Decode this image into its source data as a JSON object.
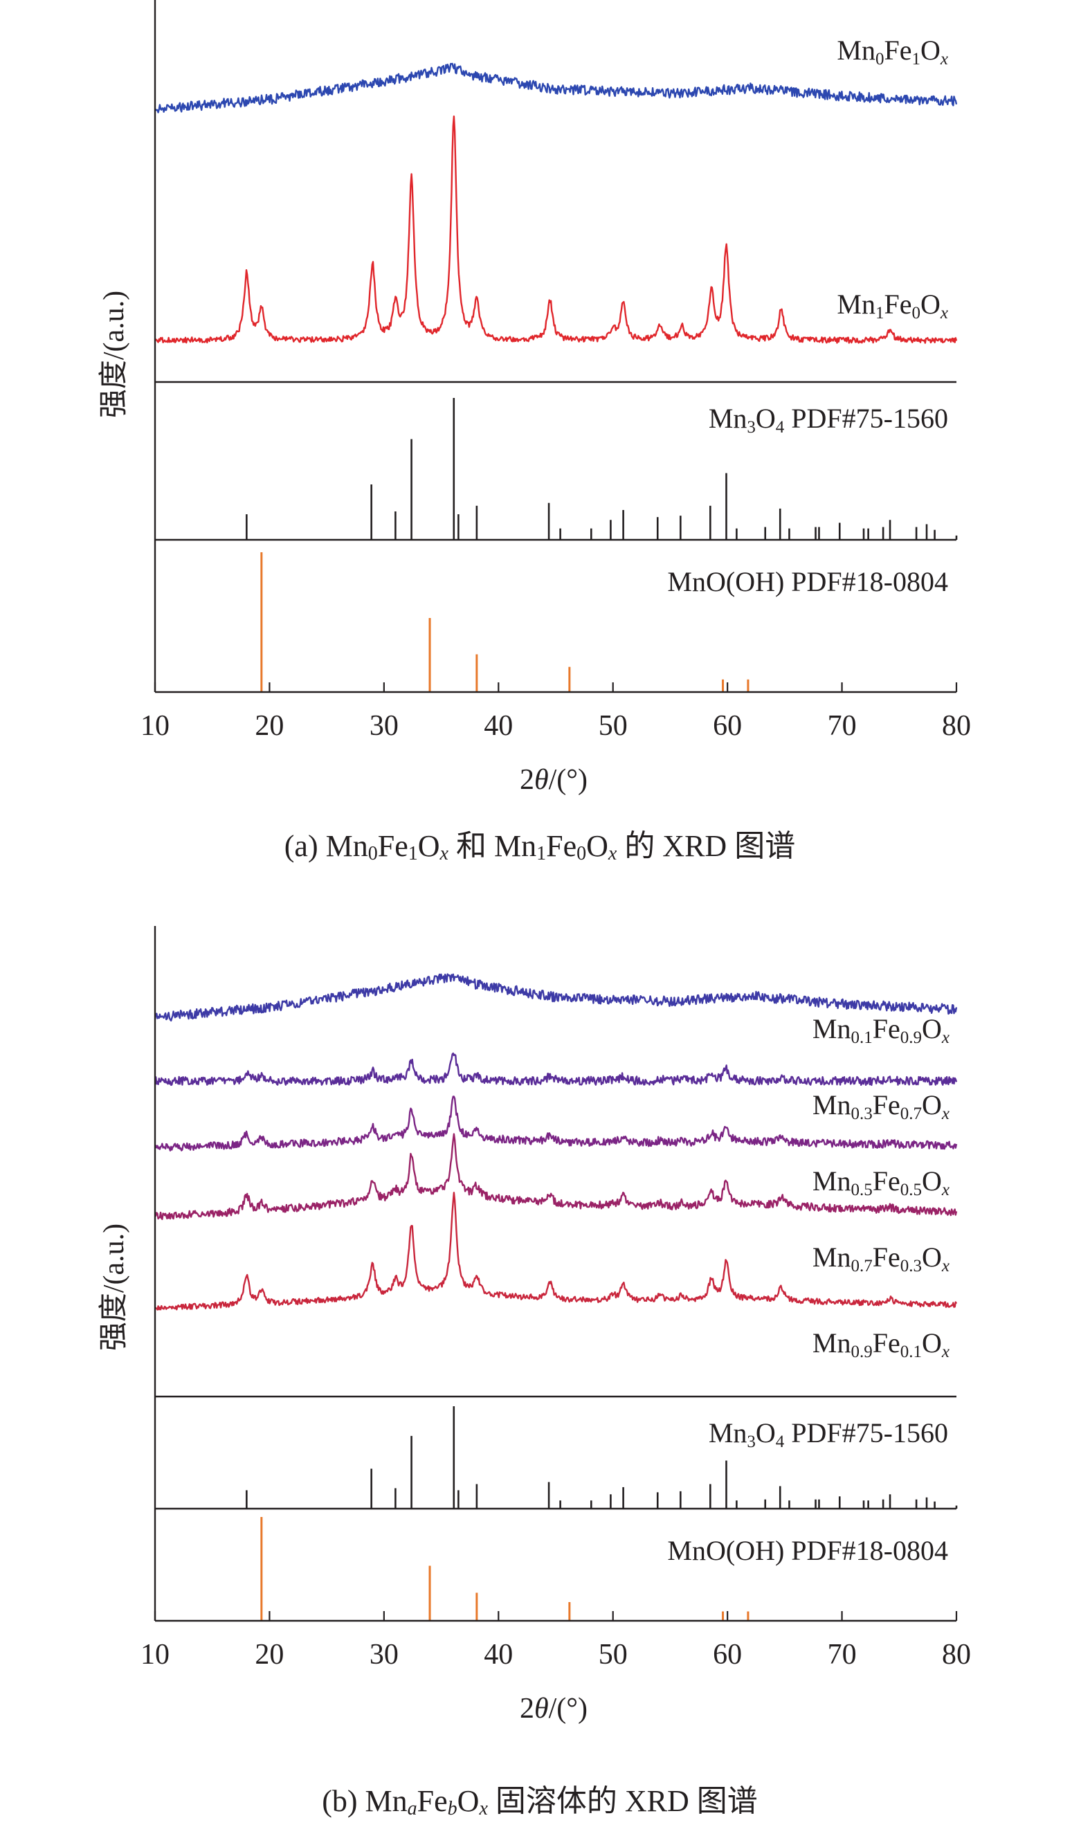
{
  "figure": {
    "ylabel_text": "强度/(a.u.)",
    "xlabel_text": "2θ/(°)",
    "caption_a": {
      "prefix": "(a) ",
      "suffix": " 的 XRD 图谱"
    },
    "caption_b": {
      "prefix": "(b) ",
      "suffix": " 固溶体的 XRD 图谱"
    },
    "colors": {
      "axis": "#231f20",
      "ref_orange": "#e8782a",
      "Mn0Fe1": "#2c47b0",
      "Mn01": "#3d3aa6",
      "Mn03": "#5a2d98",
      "Mn05": "#7b2585",
      "Mn07": "#9a2266",
      "Mn09Fe01": "#c9263c",
      "Mn1Fe0": "#e0262b"
    }
  },
  "chart_data": [
    {
      "type": "line",
      "panel": "a",
      "caption": "(a) Mn0Fe1Ox 和 Mn1Fe0Ox 的 XRD 图谱",
      "xlabel": "2θ/(°)",
      "ylabel": "强度/(a.u.)",
      "xlim": [
        10,
        80
      ],
      "xticks": [
        10,
        20,
        30,
        40,
        50,
        60,
        70,
        80
      ],
      "grid": false,
      "series": [
        {
          "name": "Mn0Fe1Ox",
          "label_parts": [
            [
              "Mn",
              ""
            ],
            [
              "0",
              "sub"
            ],
            [
              "Fe",
              ""
            ],
            [
              "1",
              "sub"
            ],
            [
              "O",
              ""
            ],
            [
              "x",
              "subi"
            ]
          ],
          "color_key": "Mn0Fe1",
          "kind": "amorphous",
          "x": [
            10,
            20,
            30,
            34,
            36,
            38,
            45,
            55,
            62,
            70,
            80
          ],
          "y": [
            0.0,
            0.15,
            0.42,
            0.55,
            0.62,
            0.5,
            0.3,
            0.24,
            0.32,
            0.2,
            0.12
          ]
        },
        {
          "name": "Mn1Fe0Ox",
          "label_parts": [
            [
              "Mn",
              ""
            ],
            [
              "1",
              "sub"
            ],
            [
              "Fe",
              ""
            ],
            [
              "0",
              "sub"
            ],
            [
              "O",
              ""
            ],
            [
              "x",
              "subi"
            ]
          ],
          "color_key": "Mn1Fe0",
          "kind": "crystalline",
          "peaks": [
            [
              18.0,
              0.3
            ],
            [
              19.3,
              0.14
            ],
            [
              29.0,
              0.34
            ],
            [
              31.0,
              0.15
            ],
            [
              32.4,
              0.73
            ],
            [
              36.1,
              1.0
            ],
            [
              38.1,
              0.18
            ],
            [
              44.5,
              0.18
            ],
            [
              50.0,
              0.05
            ],
            [
              50.9,
              0.17
            ],
            [
              54.1,
              0.07
            ],
            [
              56.0,
              0.06
            ],
            [
              58.6,
              0.22
            ],
            [
              59.9,
              0.42
            ],
            [
              64.7,
              0.14
            ],
            [
              74.2,
              0.05
            ]
          ]
        }
      ],
      "references": [
        {
          "name": "Mn3O4 PDF#75-1560",
          "label_parts": [
            [
              "Mn",
              ""
            ],
            [
              "3",
              "sub"
            ],
            [
              "O",
              ""
            ],
            [
              "4",
              "sub"
            ],
            [
              " PDF#75-1560",
              ""
            ]
          ],
          "color_key": "axis",
          "x": [
            18.0,
            28.9,
            31.0,
            32.4,
            36.1,
            36.5,
            38.1,
            44.4,
            45.4,
            48.1,
            49.8,
            50.9,
            53.9,
            55.9,
            58.5,
            59.9,
            60.8,
            63.3,
            64.6,
            65.4,
            67.7,
            68.0,
            69.8,
            71.9,
            72.3,
            73.6,
            74.2,
            76.5,
            77.4,
            78.1,
            80.0
          ],
          "y": [
            0.18,
            0.39,
            0.2,
            0.71,
            1.0,
            0.18,
            0.24,
            0.26,
            0.08,
            0.08,
            0.14,
            0.21,
            0.16,
            0.17,
            0.24,
            0.47,
            0.08,
            0.09,
            0.22,
            0.08,
            0.09,
            0.09,
            0.12,
            0.08,
            0.08,
            0.09,
            0.14,
            0.09,
            0.11,
            0.07,
            0.03
          ]
        },
        {
          "name": "MnO(OH) PDF#18-0804",
          "label_parts": [
            [
              "MnO(OH) PDF#18-0804",
              ""
            ]
          ],
          "color_key": "ref_orange",
          "x": [
            19.3,
            34.0,
            38.1,
            46.2,
            59.6,
            61.8
          ],
          "y": [
            1.0,
            0.53,
            0.27,
            0.18,
            0.09,
            0.09
          ]
        }
      ]
    },
    {
      "type": "line",
      "panel": "b",
      "caption": "(b) MnaFebOx 固溶体的 XRD 图谱",
      "xlabel": "2θ/(°)",
      "ylabel": "强度/(a.u.)",
      "xlim": [
        10,
        80
      ],
      "xticks": [
        10,
        20,
        30,
        40,
        50,
        60,
        70,
        80
      ],
      "grid": false,
      "series": [
        {
          "name": "Mn0.1Fe0.9Ox",
          "label_parts": [
            [
              "Mn",
              ""
            ],
            [
              "0.1",
              "sub"
            ],
            [
              "Fe",
              ""
            ],
            [
              "0.9",
              "sub"
            ],
            [
              "O",
              ""
            ],
            [
              "x",
              "subi"
            ]
          ],
          "color_key": "Mn01",
          "kind": "amorphous",
          "x": [
            10,
            20,
            30,
            34,
            36,
            38,
            45,
            55,
            62,
            70,
            80
          ],
          "y": [
            0.0,
            0.15,
            0.42,
            0.55,
            0.62,
            0.5,
            0.3,
            0.24,
            0.32,
            0.2,
            0.12
          ]
        },
        {
          "name": "Mn0.3Fe0.7Ox",
          "label_parts": [
            [
              "Mn",
              ""
            ],
            [
              "0.3",
              "sub"
            ],
            [
              "Fe",
              ""
            ],
            [
              "0.7",
              "sub"
            ],
            [
              "O",
              ""
            ],
            [
              "x",
              "subi"
            ]
          ],
          "color_key": "Mn03",
          "kind": "mixed",
          "crystallinity": 0.14
        },
        {
          "name": "Mn0.5Fe0.5Ox",
          "label_parts": [
            [
              "Mn",
              ""
            ],
            [
              "0.5",
              "sub"
            ],
            [
              "Fe",
              ""
            ],
            [
              "0.5",
              "sub"
            ],
            [
              "O",
              ""
            ],
            [
              "x",
              "subi"
            ]
          ],
          "color_key": "Mn05",
          "kind": "mixed",
          "crystallinity": 0.3
        },
        {
          "name": "Mn0.7Fe0.3Ox",
          "label_parts": [
            [
              "Mn",
              ""
            ],
            [
              "0.7",
              "sub"
            ],
            [
              "Fe",
              ""
            ],
            [
              "0.3",
              "sub"
            ],
            [
              "O",
              ""
            ],
            [
              "x",
              "subi"
            ]
          ],
          "color_key": "Mn07",
          "kind": "mixed",
          "crystallinity": 0.47
        },
        {
          "name": "Mn0.9Fe0.1Ox",
          "label_parts": [
            [
              "Mn",
              ""
            ],
            [
              "0.9",
              "sub"
            ],
            [
              "Fe",
              ""
            ],
            [
              "0.1",
              "sub"
            ],
            [
              "O",
              ""
            ],
            [
              "x",
              "subi"
            ]
          ],
          "color_key": "Mn09Fe01",
          "kind": "mixed",
          "crystallinity": 1.0
        }
      ],
      "references": [
        {
          "name": "Mn3O4 PDF#75-1560",
          "same_as": "panel-a"
        },
        {
          "name": "MnO(OH) PDF#18-0804",
          "same_as": "panel-a"
        }
      ]
    }
  ]
}
